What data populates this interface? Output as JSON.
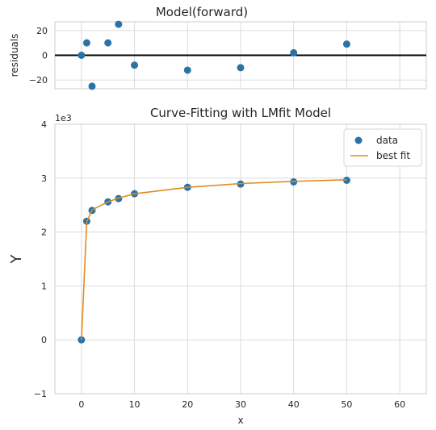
{
  "chart_data": [
    {
      "type": "scatter",
      "title": "Model(forward)",
      "ylabel": "residuals",
      "xlabel": "",
      "xlim": [
        -5,
        65
      ],
      "ylim": [
        -27,
        27
      ],
      "yticks": [
        -20,
        0,
        20
      ],
      "ytick_labels": [
        "−20",
        "0",
        "20"
      ],
      "xticks": [
        0,
        10,
        20,
        30,
        40,
        50,
        60
      ],
      "zero_line": true,
      "grid": true,
      "x": [
        0,
        1,
        2,
        5,
        7,
        10,
        20,
        30,
        40,
        50
      ],
      "y": [
        0,
        10,
        -25,
        10,
        25,
        -8,
        -12,
        -10,
        2,
        9
      ],
      "colors": {
        "points": "#2c73a5",
        "zero_line": "#000000"
      }
    },
    {
      "type": "line",
      "title": "Curve-Fitting with LMfit Model",
      "xlabel": "x",
      "ylabel": "Y",
      "y_offset_label": "1e3",
      "xlim": [
        -5,
        65
      ],
      "ylim": [
        -1,
        4
      ],
      "xticks": [
        0,
        10,
        20,
        30,
        40,
        50,
        60
      ],
      "xtick_labels": [
        "0",
        "10",
        "20",
        "30",
        "40",
        "50",
        "60"
      ],
      "yticks": [
        -1,
        0,
        1,
        2,
        3,
        4
      ],
      "ytick_labels": [
        "−1",
        "0",
        "1",
        "2",
        "3",
        "4"
      ],
      "grid": true,
      "legend_position": "top-right",
      "series": [
        {
          "name": "data",
          "kind": "scatter",
          "x": [
            0,
            1,
            2,
            5,
            7,
            10,
            20,
            30,
            40,
            50
          ],
          "y": [
            0,
            2.2,
            2.4,
            2.56,
            2.62,
            2.71,
            2.83,
            2.89,
            2.93,
            2.96
          ],
          "color": "#2c73a5"
        },
        {
          "name": "best fit",
          "kind": "line",
          "x": [
            0,
            1,
            2,
            5,
            7,
            10,
            20,
            30,
            40,
            50
          ],
          "y": [
            0,
            2.19,
            2.41,
            2.56,
            2.63,
            2.71,
            2.83,
            2.9,
            2.94,
            2.97
          ],
          "color": "#e08c1e"
        }
      ]
    }
  ]
}
